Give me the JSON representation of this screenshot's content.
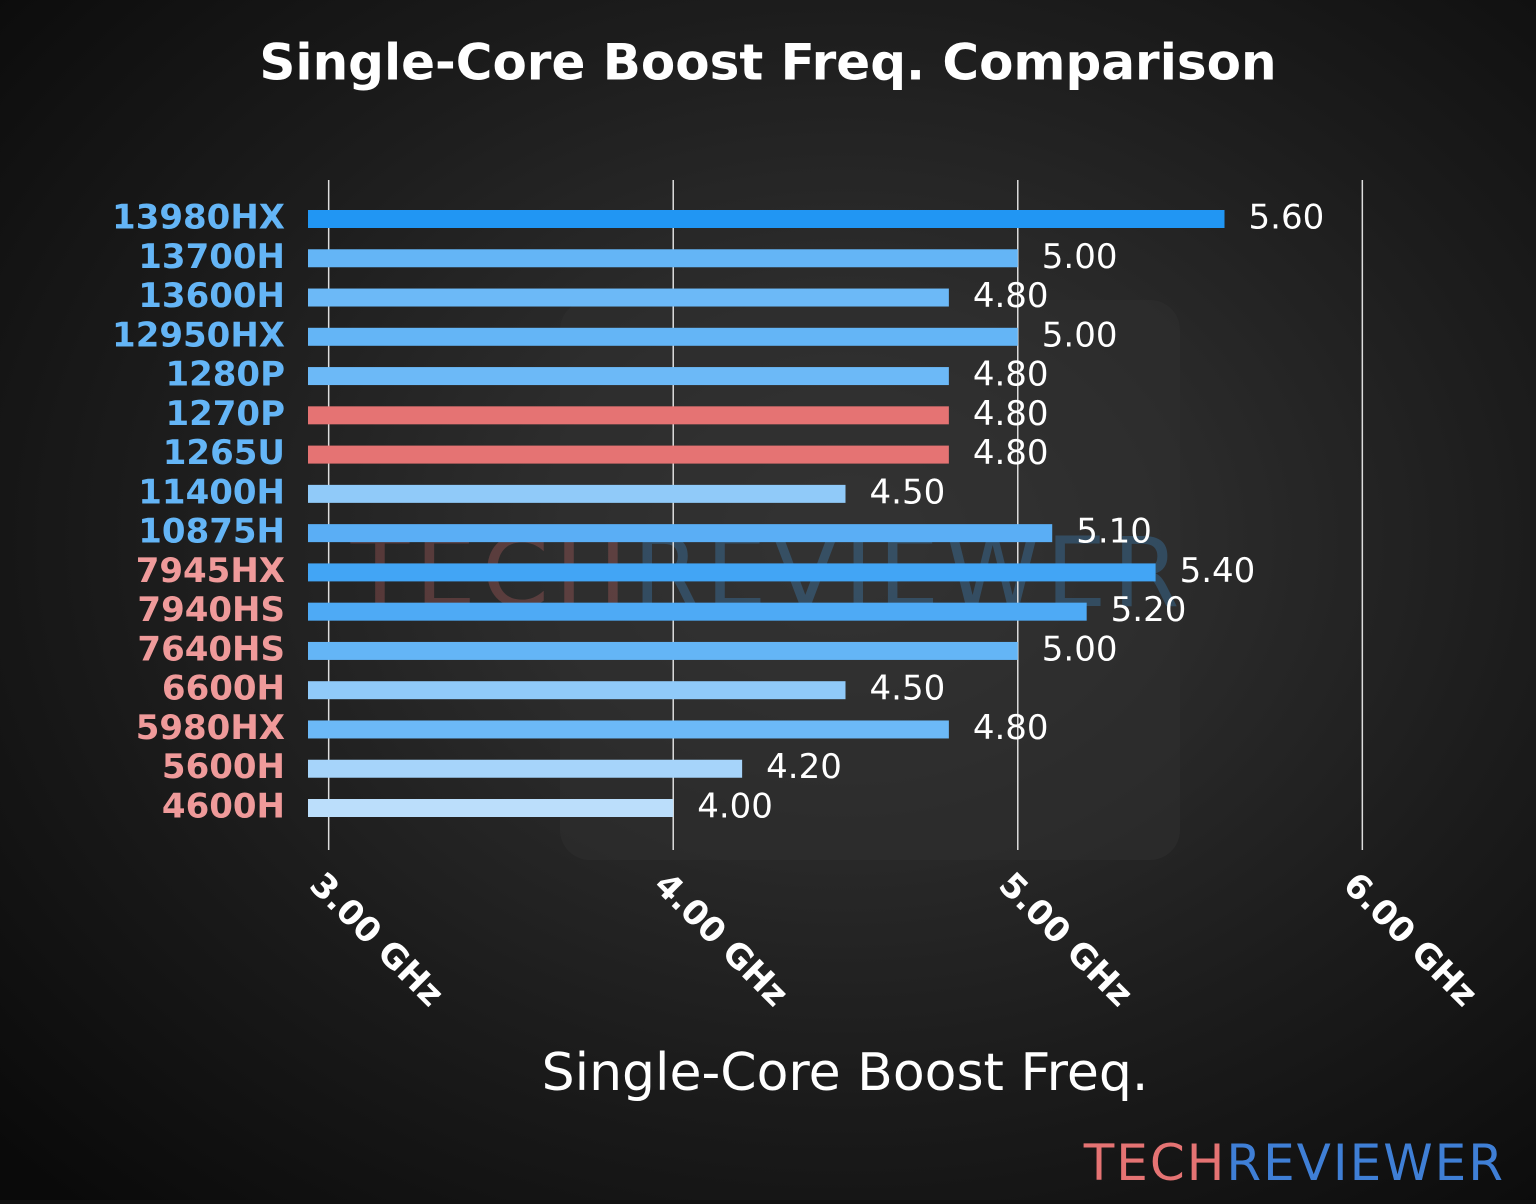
{
  "chart_data": {
    "type": "hbar",
    "title": "Single-Core Boost Freq. Comparison",
    "x_label": "Single-Core Boost Freq.",
    "categories": [
      "13980HX",
      "13700H",
      "13600H",
      "12950HX",
      "1280P",
      "1270P",
      "1265U",
      "11400H",
      "10875H",
      "7945HX",
      "7940HS",
      "7640HS",
      "6600H",
      "5980HX",
      "5600H",
      "4600H"
    ],
    "values": [
      5.6,
      5.0,
      4.8,
      5.0,
      4.8,
      4.8,
      4.8,
      4.5,
      5.1,
      5.4,
      5.2,
      5.0,
      4.5,
      4.8,
      4.2,
      4.0
    ],
    "value_labels": [
      "5.60",
      "5.00",
      "4.80",
      "5.00",
      "4.80",
      "4.80",
      "4.80",
      "4.50",
      "5.10",
      "5.40",
      "5.20",
      "5.00",
      "4.50",
      "4.80",
      "4.20",
      "4.00"
    ],
    "colors": [
      "#2196f3",
      "#64b5f6",
      "#6cb9f7",
      "#64b5f6",
      "#6cb9f7",
      "#e57373",
      "#e57373",
      "#90caf9",
      "#5aaef5",
      "#42a5f5",
      "#4eaaf5",
      "#64b5f6",
      "#90caf9",
      "#6cb9f7",
      "#a6d4fa",
      "#bbdefb"
    ],
    "label_colors": [
      "#64b5f6",
      "#64b5f6",
      "#64b5f6",
      "#64b5f6",
      "#64b5f6",
      "#64b5f6",
      "#64b5f6",
      "#64b5f6",
      "#64b5f6",
      "#ef9a9a",
      "#ef9a9a",
      "#ef9a9a",
      "#ef9a9a",
      "#ef9a9a",
      "#ef9a9a",
      "#ef9a9a"
    ],
    "xlim": [
      2.94,
      6.06
    ],
    "xticks": [
      {
        "value": 3,
        "label": "3.00 GHz"
      },
      {
        "value": 4,
        "label": "4.00 GHz"
      },
      {
        "value": 5,
        "label": "5.00 GHz"
      },
      {
        "value": 6,
        "label": "6.00 GHz"
      }
    ],
    "grid": true,
    "watermark": [
      "TECH",
      "REVIEWER"
    ]
  }
}
